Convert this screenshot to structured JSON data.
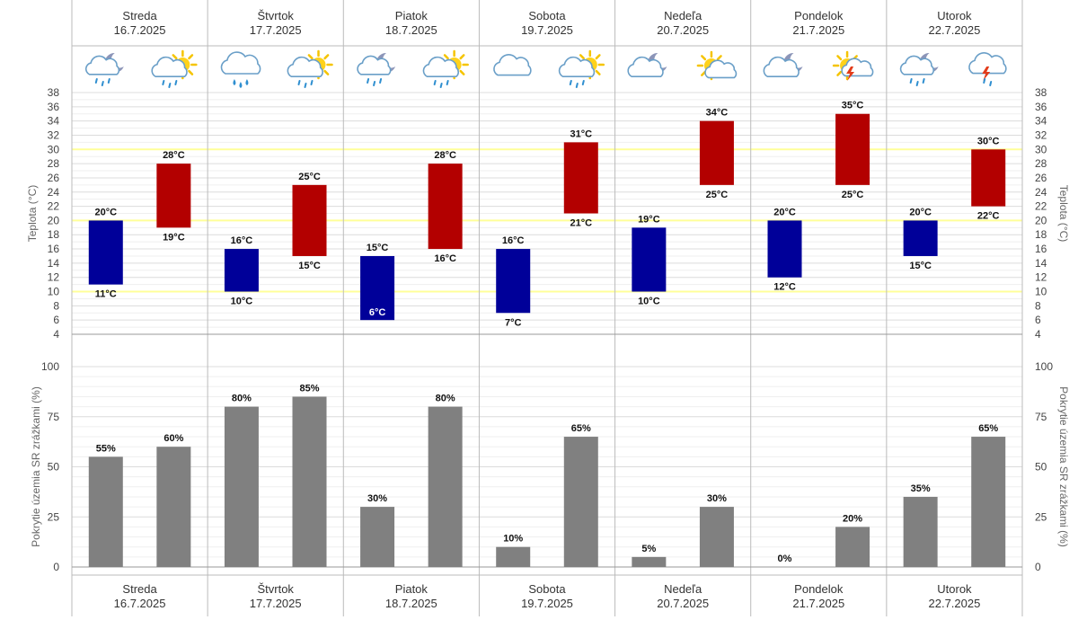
{
  "days": [
    {
      "name": "Streda",
      "date": "16.7.2025",
      "icons": [
        "night-partly-cloudy-showers-icon",
        "partly-sunny-showers-icon"
      ]
    },
    {
      "name": "Štvrtok",
      "date": "17.7.2025",
      "icons": [
        "rain-icon",
        "partly-sunny-showers-icon"
      ]
    },
    {
      "name": "Piatok",
      "date": "18.7.2025",
      "icons": [
        "night-partly-cloudy-showers-icon",
        "partly-sunny-showers-icon"
      ]
    },
    {
      "name": "Sobota",
      "date": "19.7.2025",
      "icons": [
        "cloudy-icon",
        "partly-sunny-showers-icon"
      ]
    },
    {
      "name": "Nedeľa",
      "date": "20.7.2025",
      "icons": [
        "night-cloudy-icon",
        "partly-sunny-icon"
      ]
    },
    {
      "name": "Pondelok",
      "date": "21.7.2025",
      "icons": [
        "night-cloudy-icon",
        "sunny-storm-icon"
      ]
    },
    {
      "name": "Utorok",
      "date": "22.7.2025",
      "icons": [
        "night-partly-cloudy-showers-icon",
        "thunderstorm-rain-icon"
      ]
    }
  ],
  "colors": {
    "night": "#000099",
    "day": "#b30000",
    "precip": "#808080",
    "highlight": "#ffff99",
    "grid": "#e2e2e2",
    "border": "#bbbbbb"
  },
  "chart_data": [
    {
      "type": "bar",
      "subtype": "floating-range",
      "ylabel": "Teplota (°C)",
      "ylim": [
        4,
        38
      ],
      "yticks": [
        4,
        6,
        8,
        10,
        12,
        14,
        16,
        18,
        20,
        22,
        24,
        26,
        28,
        30,
        32,
        34,
        36,
        38
      ],
      "highlight_lines": [
        10,
        20,
        30
      ],
      "categories": [
        "Streda 16.7.2025",
        "Štvrtok 17.7.2025",
        "Piatok 18.7.2025",
        "Sobota 19.7.2025",
        "Nedeľa 20.7.2025",
        "Pondelok 21.7.2025",
        "Utorok 22.7.2025"
      ],
      "series": [
        {
          "period": "night",
          "min": [
            11,
            10,
            6,
            7,
            10,
            12,
            15
          ],
          "max": [
            20,
            16,
            15,
            16,
            19,
            20,
            20
          ]
        },
        {
          "period": "day",
          "min": [
            19,
            15,
            16,
            21,
            25,
            25,
            22
          ],
          "max": [
            28,
            25,
            28,
            31,
            34,
            35,
            30
          ]
        }
      ]
    },
    {
      "type": "bar",
      "ylabel": "Pokrytie územia SR zrážkami (%)",
      "ylim": [
        0,
        100
      ],
      "yticks": [
        0,
        25,
        50,
        75,
        100
      ],
      "categories": [
        "Streda 16.7.2025",
        "Štvrtok 17.7.2025",
        "Piatok 18.7.2025",
        "Sobota 19.7.2025",
        "Nedeľa 20.7.2025",
        "Pondelok 21.7.2025",
        "Utorok 22.7.2025"
      ],
      "series": [
        {
          "period": "night",
          "values": [
            55,
            80,
            30,
            10,
            5,
            0,
            35
          ]
        },
        {
          "period": "day",
          "values": [
            60,
            85,
            80,
            65,
            30,
            20,
            65
          ]
        }
      ]
    }
  ]
}
